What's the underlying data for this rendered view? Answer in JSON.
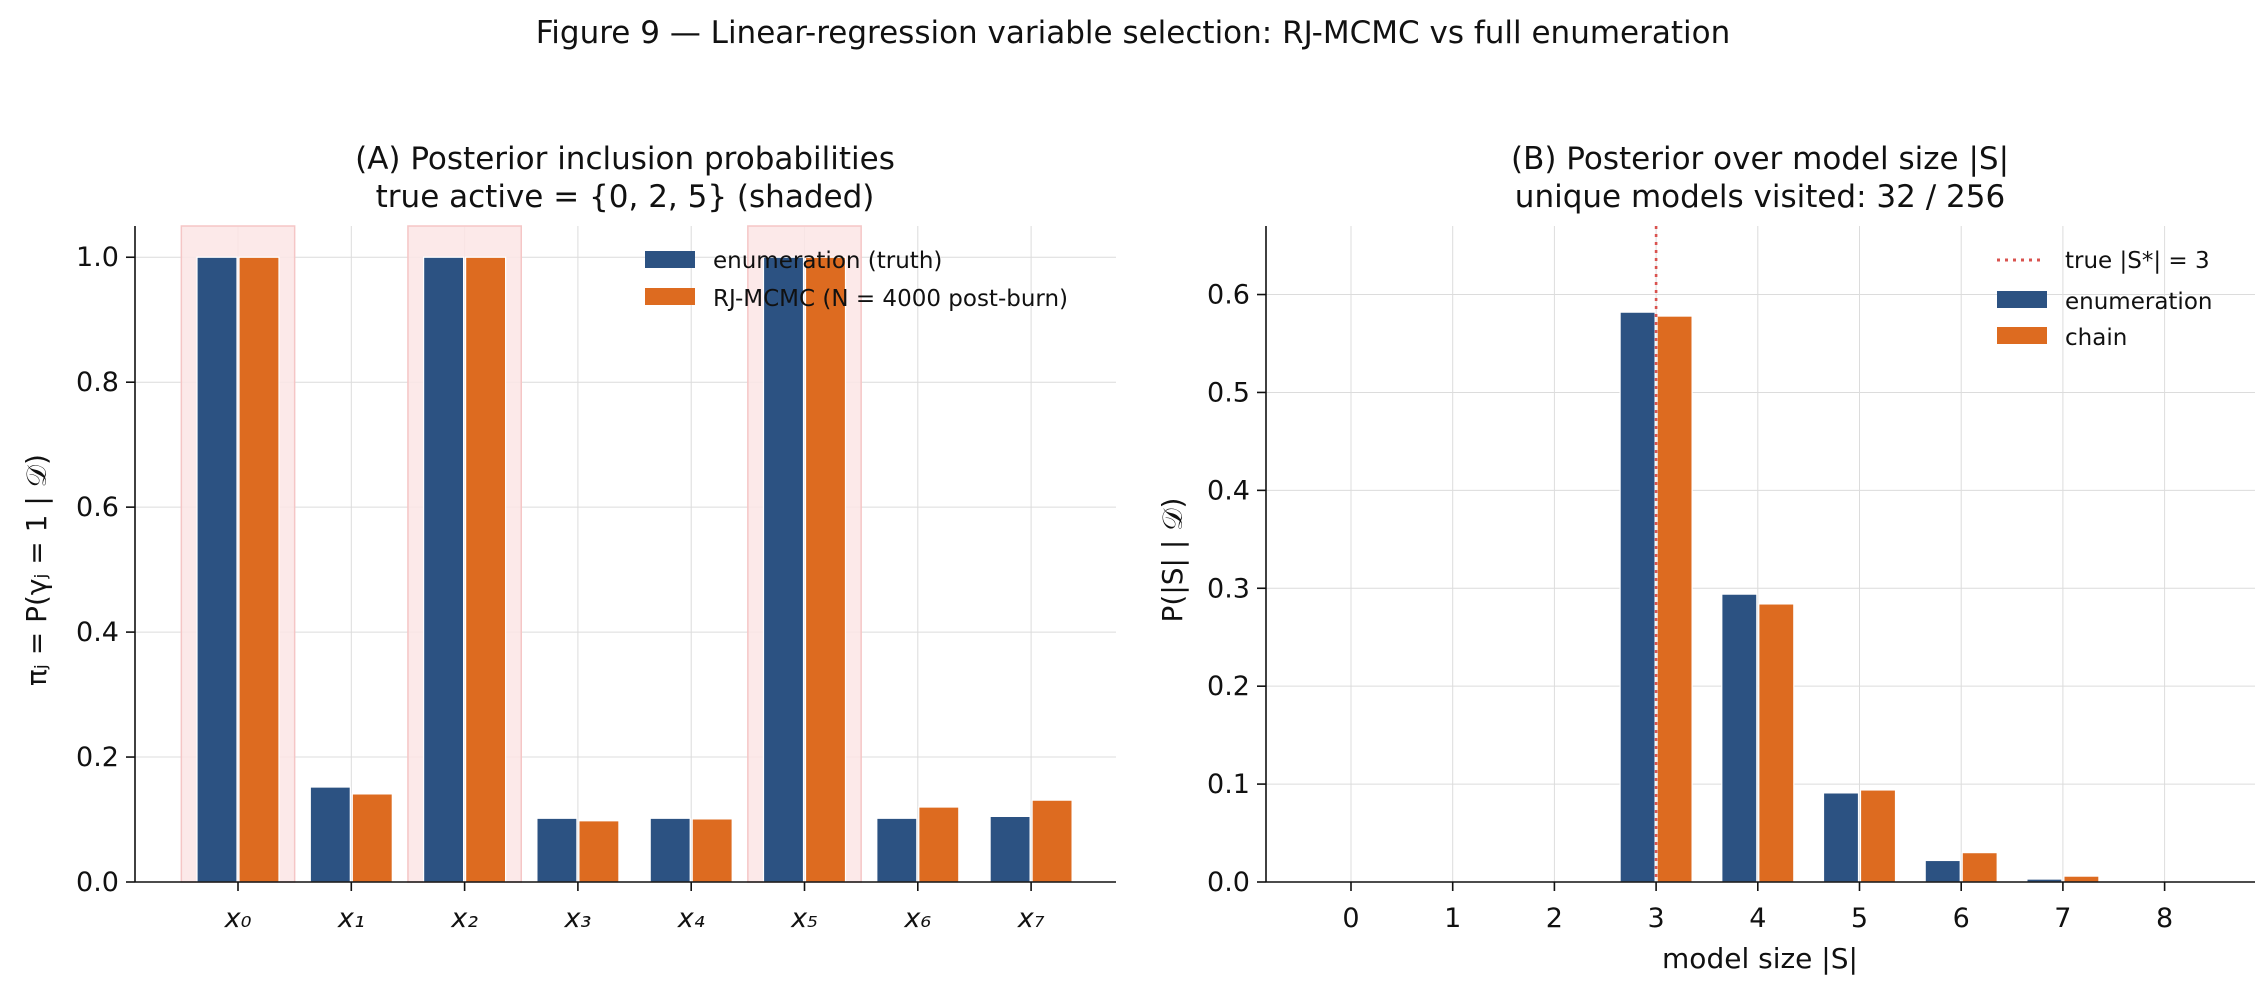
{
  "figure_title": "Figure 9 — Linear-regression variable selection: RJ-MCMC vs full enumeration",
  "colors": {
    "enumeration": "#2c5282",
    "chain": "#dd6b20",
    "shade": "#fbe5e5",
    "shade_edge": "#f5c6c6",
    "true_line": "#d9534f"
  },
  "chart_data": [
    {
      "type": "bar",
      "title_line1": "(A) Posterior inclusion probabilities",
      "title_line2": "true active = {0, 2, 5} (shaded)",
      "ylabel": "πⱼ = P(γⱼ = 1 | 𝒟)",
      "xlabel": "",
      "categories": [
        "x₀",
        "x₁",
        "x₂",
        "x₃",
        "x₄",
        "x₅",
        "x₆",
        "x₇"
      ],
      "shaded_indices": [
        0,
        2,
        5
      ],
      "series": [
        {
          "name": "enumeration (truth)",
          "values": [
            1.0,
            0.152,
            1.0,
            0.102,
            0.102,
            1.0,
            0.102,
            0.105
          ]
        },
        {
          "name": "RJ-MCMC (N = 4000 post-burn)",
          "values": [
            1.0,
            0.141,
            1.0,
            0.098,
            0.101,
            1.0,
            0.12,
            0.131
          ]
        }
      ],
      "ylim": [
        0,
        1.05
      ],
      "yticks": [
        "0.0",
        "0.2",
        "0.4",
        "0.6",
        "0.8",
        "1.0"
      ],
      "grid": true,
      "legend_position": "top-right"
    },
    {
      "type": "bar",
      "title_line1": "(B) Posterior over model size |S|",
      "title_line2": "unique models visited: 32 / 256",
      "ylabel": "P(|S| | 𝒟)",
      "xlabel": "model size |S|",
      "categories": [
        "0",
        "1",
        "2",
        "3",
        "4",
        "5",
        "6",
        "7",
        "8"
      ],
      "series": [
        {
          "name": "enumeration",
          "values": [
            0,
            0,
            0,
            0.582,
            0.294,
            0.091,
            0.022,
            0.003,
            0.0005
          ]
        },
        {
          "name": "chain",
          "values": [
            0,
            0,
            0,
            0.578,
            0.284,
            0.094,
            0.03,
            0.006,
            0.001
          ]
        }
      ],
      "true_size": 3,
      "true_size_label": "true |S*| = 3",
      "ylim": [
        0,
        0.67
      ],
      "yticks": [
        "0.0",
        "0.1",
        "0.2",
        "0.3",
        "0.4",
        "0.5",
        "0.6"
      ],
      "grid": true,
      "legend_position": "top-right"
    }
  ]
}
